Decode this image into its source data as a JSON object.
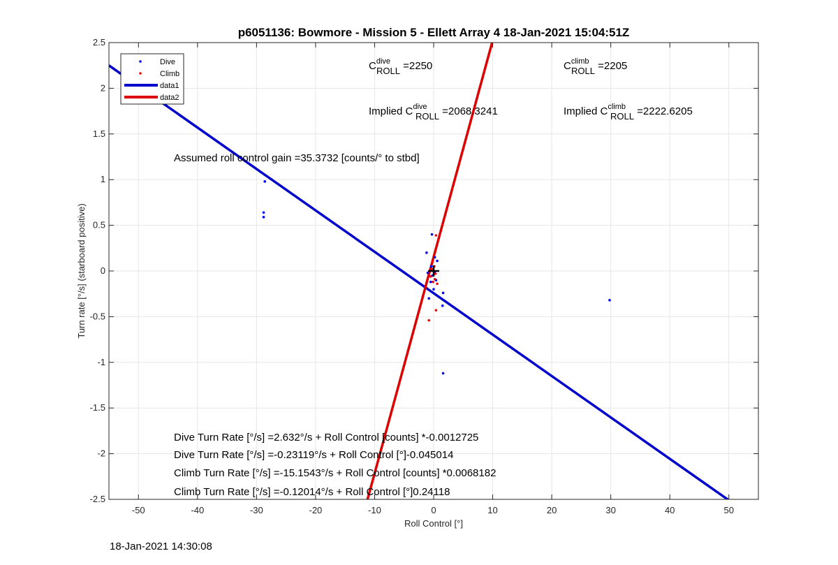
{
  "chart_data": {
    "type": "scatter",
    "title": "p6051136: Bowmore - Mission 5 - Ellett Array 4 18-Jan-2021 15:04:51Z",
    "xlabel": "Roll Control [°]",
    "ylabel": "Turn rate [°/s] (starboard positive)",
    "xlim": [
      -55,
      55
    ],
    "ylim": [
      -2.5,
      2.5
    ],
    "xticks": [
      -50,
      -40,
      -30,
      -20,
      -10,
      0,
      10,
      20,
      30,
      40,
      50
    ],
    "yticks": [
      -2.5,
      -2,
      -1.5,
      -1,
      -0.5,
      0,
      0.5,
      1,
      1.5,
      2,
      2.5
    ],
    "grid": true,
    "legend_position": "top-left",
    "series": [
      {
        "name": "Dive",
        "kind": "points",
        "color": "#0000ff",
        "points": [
          [
            -28.6,
            0.98
          ],
          [
            -28.8,
            0.64
          ],
          [
            -28.8,
            0.59
          ],
          [
            -0.3,
            0.4
          ],
          [
            -1.2,
            0.2
          ],
          [
            0.2,
            0.15
          ],
          [
            -0.4,
            0.05
          ],
          [
            0.6,
            0.11
          ],
          [
            -1.0,
            -0.02
          ],
          [
            0.2,
            -0.02
          ],
          [
            -0.2,
            -0.05
          ],
          [
            0.4,
            -0.1
          ],
          [
            -0.5,
            -0.12
          ],
          [
            0.0,
            -0.2
          ],
          [
            1.6,
            -0.24
          ],
          [
            -0.8,
            -0.3
          ],
          [
            1.5,
            -0.38
          ],
          [
            1.6,
            -1.12
          ],
          [
            29.8,
            -0.32
          ]
        ]
      },
      {
        "name": "Climb",
        "kind": "points",
        "color": "#ff0000",
        "points": [
          [
            0.4,
            0.39
          ],
          [
            -0.2,
            0.1
          ],
          [
            0.1,
            0.05
          ],
          [
            -0.3,
            0.02
          ],
          [
            0.3,
            -0.03
          ],
          [
            -0.5,
            -0.06
          ],
          [
            0.2,
            -0.09
          ],
          [
            -0.1,
            -0.12
          ],
          [
            0.6,
            -0.14
          ],
          [
            0.4,
            -0.43
          ],
          [
            -0.8,
            -0.54
          ]
        ]
      },
      {
        "name": "data1",
        "kind": "line",
        "color": "#0000cc",
        "x": [
          -55,
          50
        ],
        "y": [
          2.25,
          -2.51
        ]
      },
      {
        "name": "data2",
        "kind": "line",
        "color": "#dd0000",
        "x": [
          -11.2,
          9.9
        ],
        "y": [
          -2.5,
          2.5
        ]
      }
    ],
    "marker": {
      "x": 0,
      "y": 0,
      "symbol": "+"
    },
    "annotations": {
      "c_dive": {
        "prefix": "C",
        "sup": "dive",
        "sub": "ROLL",
        "value": " =2250"
      },
      "c_climb": {
        "prefix": "C",
        "sup": "climb",
        "sub": "ROLL",
        "value": " =2205"
      },
      "implied_dive": {
        "prefix": "Implied C",
        "sup": "dive",
        "sub": "ROLL",
        "value": " =2068.3241"
      },
      "implied_climb": {
        "prefix": "Implied C",
        "sup": "climb",
        "sub": "ROLL",
        "value": " =2222.6205"
      },
      "gain": "Assumed roll control gain =35.3732 [counts/° to stbd]",
      "fit_lines": [
        "Dive Turn Rate [°/s] =2.632°/s + Roll Control [counts] *-0.0012725",
        "Dive Turn Rate [°/s] =-0.23119°/s + Roll Control [°]-0.045014",
        "Climb Turn Rate [°/s] =-15.1543°/s + Roll Control [counts] *0.0068182",
        "Climb Turn Rate [°/s] =-0.12014°/s + Roll Control [°]0.24118"
      ]
    }
  },
  "footer": {
    "timestamp": "18-Jan-2021 14:30:08"
  }
}
